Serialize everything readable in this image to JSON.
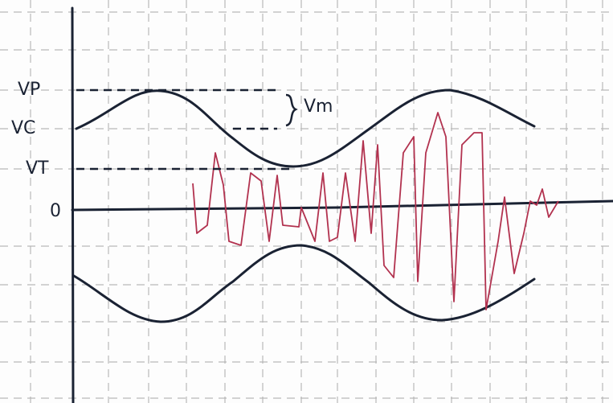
{
  "labels": {
    "vp": "VP",
    "vc": "VC",
    "vt": "VT",
    "zero": "0",
    "vm": "Vm"
  }
}
